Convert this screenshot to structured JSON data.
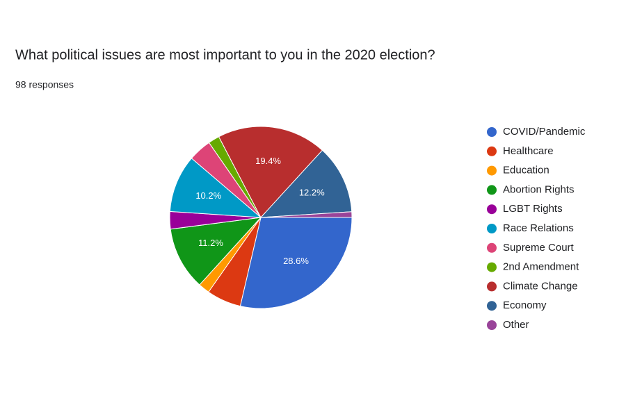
{
  "chart_data": {
    "type": "pie",
    "title": "What political issues are most important to you in the 2020 election?",
    "subtitle": "98 responses",
    "categories": [
      "COVID/Pandemic",
      "Healthcare",
      "Education",
      "Abortion Rights",
      "LGBT Rights",
      "Race Relations",
      "Supreme Court",
      "2nd Amendment",
      "Climate Change",
      "Economy",
      "Other"
    ],
    "values": [
      28.6,
      6.1,
      2,
      11.2,
      3.1,
      10.2,
      4.1,
      2,
      19.4,
      12.2,
      1
    ],
    "value_labels": [
      "28.6%",
      null,
      null,
      "11.2%",
      null,
      "10.2%",
      null,
      null,
      "19.4%",
      "12.2%",
      null
    ],
    "colors": [
      "#3366cc",
      "#dc3912",
      "#ff9900",
      "#109618",
      "#990099",
      "#0099c6",
      "#dd4477",
      "#66aa00",
      "#b82e2e",
      "#316395",
      "#994499"
    ],
    "legend": "right"
  }
}
